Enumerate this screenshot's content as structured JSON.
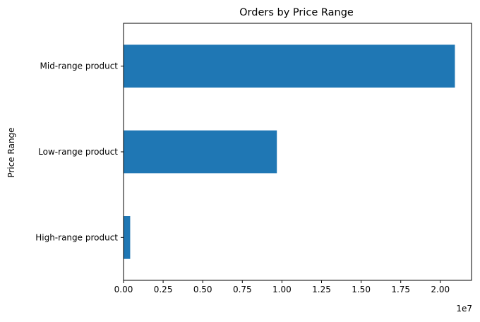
{
  "chart_data": {
    "type": "bar",
    "orientation": "horizontal",
    "title": "Orders by Price Range",
    "xlabel": "",
    "ylabel": "Price Range",
    "x_offset_label": "1e7",
    "categories": [
      "High-range product",
      "Low-range product",
      "Mid-range product"
    ],
    "values": [
      420000,
      9680000,
      20920000
    ],
    "xlim": [
      0,
      21970000
    ],
    "x_ticks": [
      0,
      2500000,
      5000000,
      7500000,
      10000000,
      12500000,
      15000000,
      17500000,
      20000000
    ],
    "x_tick_labels": [
      "0.00",
      "0.25",
      "0.50",
      "0.75",
      "1.00",
      "1.25",
      "1.50",
      "1.75",
      "2.00"
    ],
    "grid": false,
    "legend": "none",
    "bar_color": "#1f77b4"
  }
}
